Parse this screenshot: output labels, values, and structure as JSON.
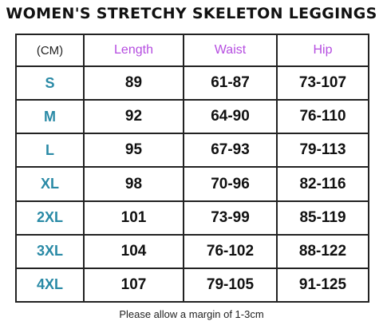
{
  "title": "WOMEN'S STRETCHY SKELETON LEGGINGS",
  "table": {
    "unit_label": "(CM)",
    "columns": [
      "Length",
      "Waist",
      "Hip"
    ],
    "rows": [
      {
        "size": "S",
        "length": "89",
        "waist": "61-87",
        "hip": "73-107"
      },
      {
        "size": "M",
        "length": "92",
        "waist": "64-90",
        "hip": "76-110"
      },
      {
        "size": "L",
        "length": "95",
        "waist": "67-93",
        "hip": "79-113"
      },
      {
        "size": "XL",
        "length": "98",
        "waist": "70-96",
        "hip": "82-116"
      },
      {
        "size": "2XL",
        "length": "101",
        "waist": "73-99",
        "hip": "85-119"
      },
      {
        "size": "3XL",
        "length": "104",
        "waist": "76-102",
        "hip": "88-122"
      },
      {
        "size": "4XL",
        "length": "107",
        "waist": "79-105",
        "hip": "91-125"
      }
    ]
  },
  "footer_note": "Please allow a margin of 1-3cm",
  "colors": {
    "header_text": "#b54de0",
    "size_text": "#2a8aa6",
    "border": "#222222"
  }
}
